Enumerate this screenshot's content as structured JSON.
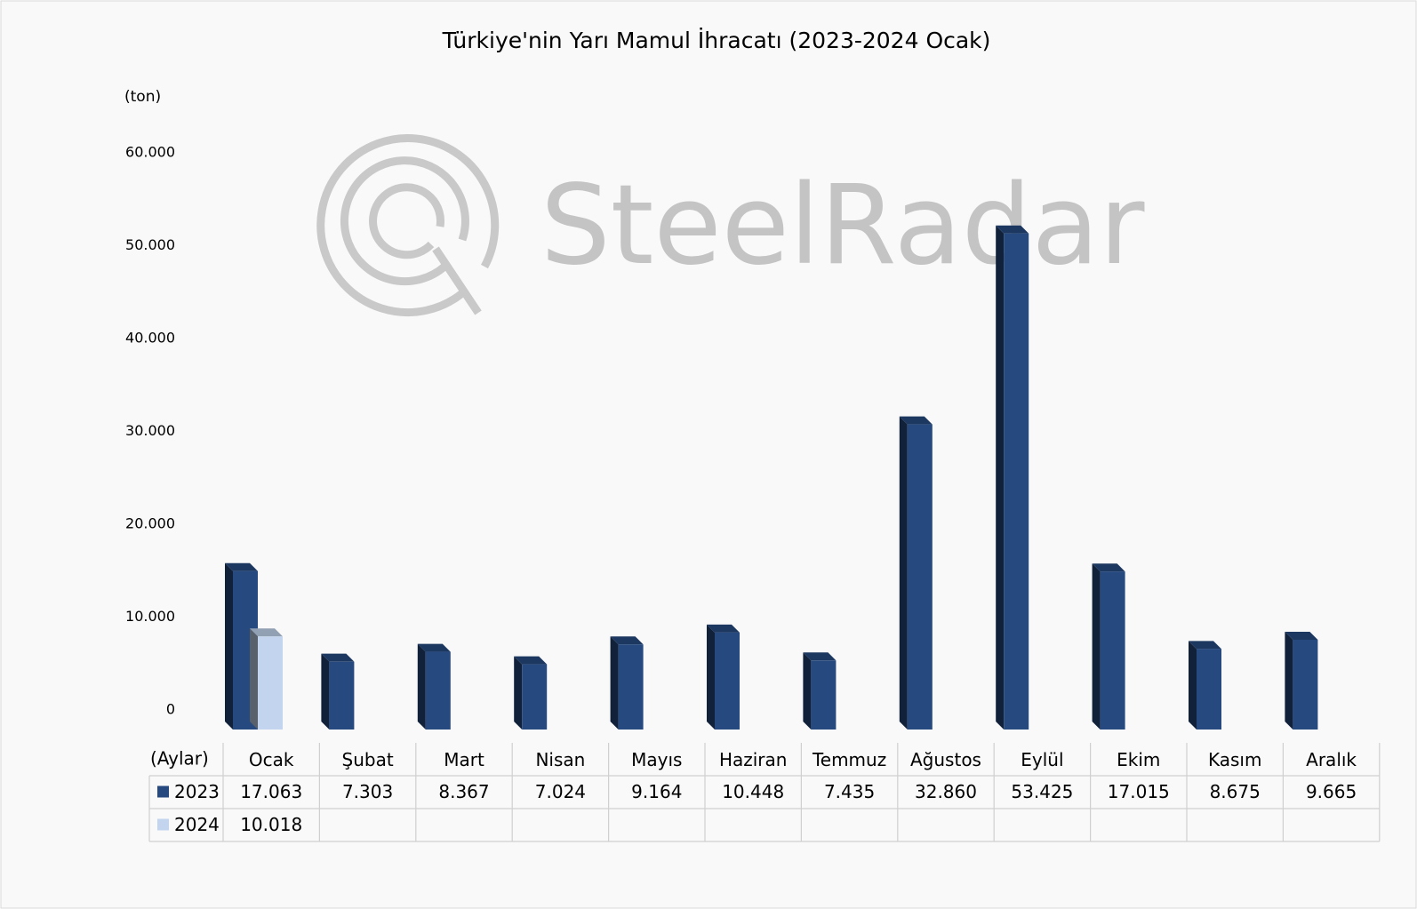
{
  "chart_data": {
    "type": "bar",
    "title": "Türkiye'nin Yarı Mamul İhracatı (2023-2024 Ocak)",
    "y_label": "(ton)",
    "x_label": "(Aylar)",
    "watermark": "SteelRadar",
    "categories": [
      "Ocak",
      "Şubat",
      "Mart",
      "Nisan",
      "Mayıs",
      "Haziran",
      "Temmuz",
      "Ağustos",
      "Eylül",
      "Ekim",
      "Kasım",
      "Aralık"
    ],
    "series": [
      {
        "name": "2023",
        "color": "#264a80",
        "values": [
          17063,
          7303,
          8367,
          7024,
          9164,
          10448,
          7435,
          32860,
          53425,
          17015,
          8675,
          9665
        ],
        "value_labels": [
          "17.063",
          "7.303",
          "8.367",
          "7.024",
          "9.164",
          "10.448",
          "7.435",
          "32.860",
          "53.425",
          "17.015",
          "8.675",
          "9.665"
        ]
      },
      {
        "name": "2024",
        "color": "#c3d5ee",
        "values": [
          10018,
          null,
          null,
          null,
          null,
          null,
          null,
          null,
          null,
          null,
          null,
          null
        ],
        "value_labels": [
          "10.018",
          null,
          null,
          null,
          null,
          null,
          null,
          null,
          null,
          null,
          null,
          null
        ]
      }
    ],
    "ylim": [
      0,
      60000
    ],
    "yticks": [
      0,
      {
        "value": 10000,
        "label": "10.000"
      },
      {
        "value": 20000,
        "label": "20.000"
      },
      {
        "value": 30000,
        "label": "30.000"
      },
      {
        "value": 40000,
        "label": "40.000"
      },
      {
        "value": 50000,
        "label": "50.000"
      },
      {
        "value": 60000,
        "label": "60.000"
      }
    ],
    "grid": false,
    "data_table": true
  }
}
